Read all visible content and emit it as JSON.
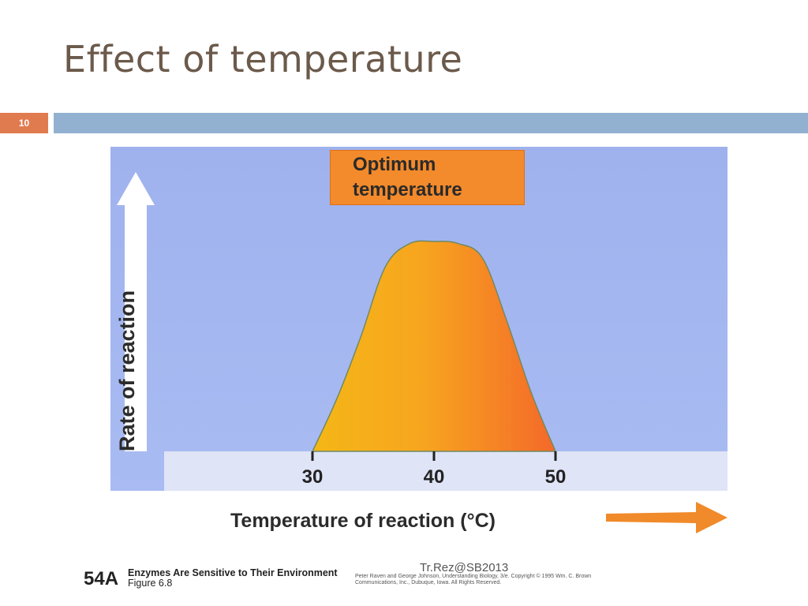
{
  "slide": {
    "title": "Effect of temperature",
    "number": "10",
    "credit": "Tr.Rez@SB2013"
  },
  "figure": {
    "callout_line1": "Optimum",
    "callout_line2": "temperature",
    "caption_number": "54A",
    "caption_title": "Enzymes Are Sensitive to Their Environment",
    "caption_figure": "Figure 6.8",
    "copyright": "Peter Raven and George Johnson, Understanding Biology, 3/e. Copyright © 1995 Wm. C. Brown Communications, Inc., Dubuque, Iowa. All Rights Reserved."
  },
  "chart_data": {
    "type": "area",
    "ylabel": "Rate of reaction",
    "xlabel": "Temperature of reaction (°C)",
    "xticks": [
      "30",
      "40",
      "50"
    ],
    "xlim": [
      30,
      50
    ],
    "x": [
      30,
      32,
      34,
      36,
      38,
      40,
      42,
      44,
      46,
      48,
      50
    ],
    "y": [
      0,
      0.25,
      0.55,
      0.88,
      0.99,
      1.0,
      0.99,
      0.92,
      0.62,
      0.28,
      0
    ],
    "colors": {
      "curve_fill_start": "#f3b514",
      "curve_fill_end": "#f77b2c",
      "curve_outline": "#6f8a63",
      "background": "#a5b7f1",
      "callout": "#f38a2b",
      "arrow_up": "#ffffff",
      "arrow_right": "#f08a2a"
    }
  }
}
